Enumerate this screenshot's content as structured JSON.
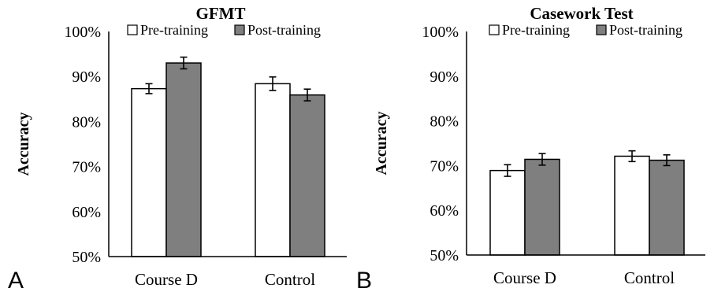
{
  "colors": {
    "pre": "#ffffff",
    "post": "#7f7f7f",
    "axis": "#000000"
  },
  "chart_data": [
    {
      "type": "bar",
      "panel_label": "A",
      "title": "GFMT",
      "xlabel": "",
      "ylabel": "Accuracy",
      "ylim": [
        50,
        100
      ],
      "y_ticks": [
        "50%",
        "60%",
        "70%",
        "80%",
        "90%",
        "100%"
      ],
      "categories": [
        "Course D",
        "Control"
      ],
      "legend_position": "top",
      "series": [
        {
          "name": "Pre-training",
          "values": [
            87.3,
            88.4
          ],
          "errors": [
            1.1,
            1.5
          ]
        },
        {
          "name": "Post-training",
          "values": [
            93.0,
            85.9
          ],
          "errors": [
            1.3,
            1.3
          ]
        }
      ]
    },
    {
      "type": "bar",
      "panel_label": "B",
      "title": "Casework Test",
      "xlabel": "",
      "ylabel": "Accuracy",
      "ylim": [
        50,
        100
      ],
      "y_ticks": [
        "50%",
        "60%",
        "70%",
        "80%",
        "90%",
        "100%"
      ],
      "categories": [
        "Course D",
        "Control"
      ],
      "legend_position": "top",
      "series": [
        {
          "name": "Pre-training",
          "values": [
            68.9,
            72.1
          ],
          "errors": [
            1.3,
            1.2
          ]
        },
        {
          "name": "Post-training",
          "values": [
            71.4,
            71.2
          ],
          "errors": [
            1.3,
            1.2
          ]
        }
      ]
    }
  ]
}
